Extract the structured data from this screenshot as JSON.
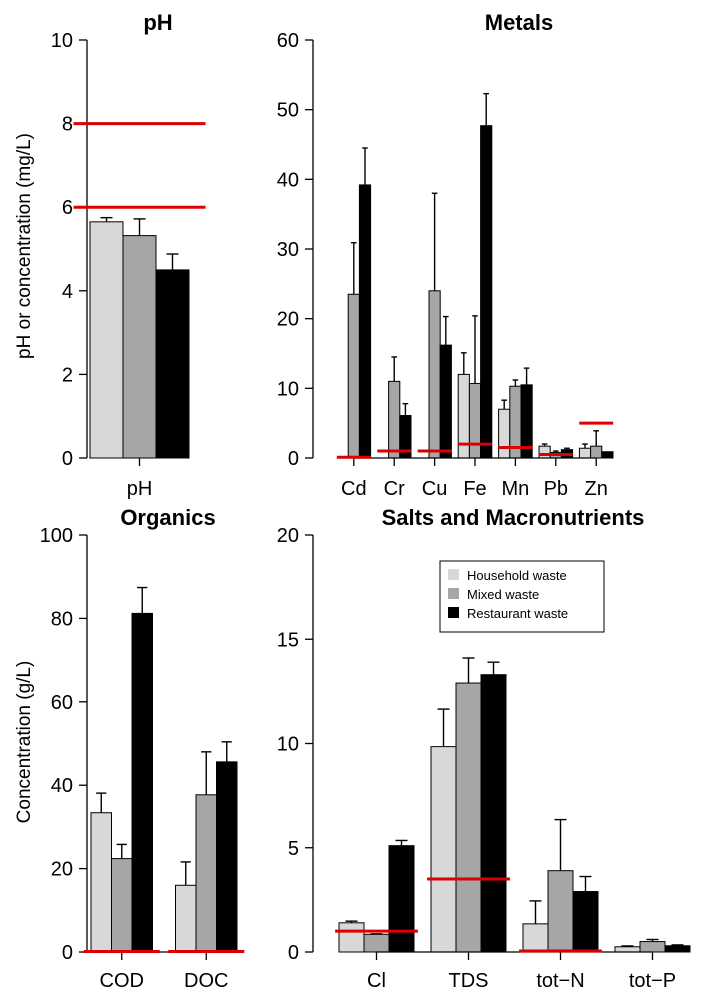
{
  "colors": {
    "household": "#d8d8d8",
    "mixed": "#a6a6a6",
    "restaurant": "#000000",
    "limit": "#dd0000"
  },
  "y_labels": {
    "top": "pH or concentration (mg/L)",
    "bottom": "Concentration (g/L)"
  },
  "legend": {
    "entries": [
      "Household waste",
      "Mixed waste",
      "Restaurant waste"
    ],
    "placement": "top-right of Salts and Macronutrients panel"
  },
  "chart_data": [
    {
      "type": "bar",
      "title": "pH",
      "ylim": [
        0,
        10
      ],
      "yticks": [
        0,
        2,
        4,
        6,
        8,
        10
      ],
      "categories": [
        "pH"
      ],
      "series": [
        {
          "name": "Household waste",
          "values": [
            5.65
          ],
          "errors": [
            0.1
          ]
        },
        {
          "name": "Mixed waste",
          "values": [
            5.32
          ],
          "errors": [
            0.4
          ]
        },
        {
          "name": "Restaurant waste",
          "values": [
            4.5
          ],
          "errors": [
            0.38
          ]
        }
      ],
      "limits": [
        {
          "lo": -0.55,
          "hi": 0.55,
          "value": 8
        },
        {
          "lo": -0.55,
          "hi": 0.55,
          "value": 6
        }
      ]
    },
    {
      "type": "bar",
      "title": "Metals",
      "ylim": [
        0,
        60
      ],
      "yticks": [
        0,
        10,
        20,
        30,
        40,
        50,
        60
      ],
      "categories": [
        "Cd",
        "Cr",
        "Cu",
        "Fe",
        "Mn",
        "Pb",
        "Zn"
      ],
      "series": [
        {
          "name": "Household waste",
          "values": [
            0,
            0,
            0,
            12,
            7,
            1.7,
            1.4
          ],
          "errors": [
            0,
            0,
            0,
            3.1,
            1.3,
            0.3,
            0.6
          ]
        },
        {
          "name": "Mixed waste",
          "values": [
            23.5,
            11,
            24,
            10.7,
            10.3,
            0.8,
            1.7
          ],
          "errors": [
            7.4,
            3.5,
            14,
            9.7,
            0.9,
            0.2,
            2.2
          ]
        },
        {
          "name": "Restaurant waste",
          "values": [
            39.2,
            6.1,
            16.2,
            47.7,
            10.5,
            1.2,
            0.9
          ],
          "errors": [
            5.3,
            1.7,
            4.1,
            4.6,
            2.4,
            0.2,
            0
          ]
        }
      ],
      "limits": [
        {
          "lo": -0.42,
          "hi": 0.42,
          "value": 0.1
        },
        {
          "lo": 0.58,
          "hi": 1.42,
          "value": 1
        },
        {
          "lo": 1.58,
          "hi": 2.42,
          "value": 1
        },
        {
          "lo": 2.58,
          "hi": 3.42,
          "value": 2
        },
        {
          "lo": 3.58,
          "hi": 4.42,
          "value": 1.5
        },
        {
          "lo": 4.58,
          "hi": 5.42,
          "value": 0.5
        },
        {
          "lo": 5.58,
          "hi": 6.42,
          "value": 5
        }
      ]
    },
    {
      "type": "bar",
      "title": "Organics",
      "ylim": [
        0,
        100
      ],
      "yticks": [
        0,
        20,
        40,
        60,
        80,
        100
      ],
      "categories": [
        "COD",
        "DOC"
      ],
      "series": [
        {
          "name": "Household waste",
          "values": [
            33.4,
            16
          ],
          "errors": [
            4.7,
            5.6
          ]
        },
        {
          "name": "Mixed waste",
          "values": [
            22.4,
            37.7
          ],
          "errors": [
            3.4,
            10.3
          ]
        },
        {
          "name": "Restaurant waste",
          "values": [
            81.2,
            45.6
          ],
          "errors": [
            6.2,
            4.8
          ]
        }
      ],
      "limits": [
        {
          "lo": -0.45,
          "hi": 0.45,
          "value": 0.12
        },
        {
          "lo": 0.55,
          "hi": 1.45,
          "value": 0.12
        }
      ]
    },
    {
      "type": "bar",
      "title": "Salts and Macronutrients",
      "ylim": [
        0,
        20
      ],
      "yticks": [
        0,
        5,
        10,
        15,
        20
      ],
      "categories": [
        "Cl",
        "TDS",
        "tot−N",
        "tot−P"
      ],
      "series": [
        {
          "name": "Household waste",
          "values": [
            1.4,
            9.85,
            1.35,
            0.25
          ],
          "errors": [
            0.08,
            1.8,
            1.1,
            0.04
          ]
        },
        {
          "name": "Mixed waste",
          "values": [
            0.85,
            12.9,
            3.9,
            0.5
          ],
          "errors": [
            0.02,
            1.2,
            2.45,
            0.1
          ]
        },
        {
          "name": "Restaurant waste",
          "values": [
            5.1,
            13.3,
            2.9,
            0.3
          ],
          "errors": [
            0.25,
            0.6,
            0.72,
            0.04
          ]
        }
      ],
      "limits": [
        {
          "lo": -0.45,
          "hi": 0.45,
          "value": 1
        },
        {
          "lo": 0.55,
          "hi": 1.45,
          "value": 3.5
        },
        {
          "lo": 1.55,
          "hi": 2.45,
          "value": 0.05
        }
      ]
    }
  ]
}
